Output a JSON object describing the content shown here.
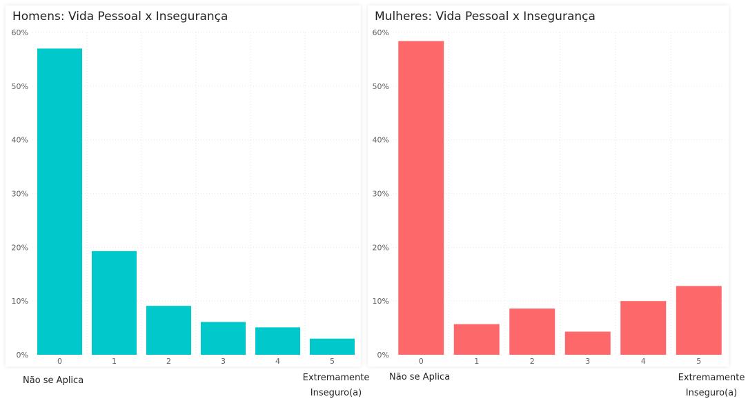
{
  "chart_data": [
    {
      "type": "bar",
      "title": "Homens: Vida Pessoal x Insegurança",
      "categories": [
        "0",
        "1",
        "2",
        "3",
        "4",
        "5"
      ],
      "values": [
        57.0,
        19.3,
        9.1,
        6.1,
        5.1,
        3.0
      ],
      "ylim": [
        0,
        60
      ],
      "yticks": [
        "0%",
        "10%",
        "20%",
        "30%",
        "40%",
        "50%",
        "60%"
      ],
      "color": "#01C8CA",
      "grid": true,
      "annotations": {
        "low": "Não se Aplica",
        "high": "Extremamente Inseguro(a)"
      }
    },
    {
      "type": "bar",
      "title": "Mulheres: Vida Pessoal x Insegurança",
      "categories": [
        "0",
        "1",
        "2",
        "3",
        "4",
        "5"
      ],
      "values": [
        58.4,
        5.7,
        8.6,
        4.3,
        10.0,
        12.8
      ],
      "ylim": [
        0,
        60
      ],
      "yticks": [
        "0%",
        "10%",
        "20%",
        "30%",
        "40%",
        "50%",
        "60%"
      ],
      "color": "#FD686A",
      "grid": true,
      "annotations": {
        "low": "Não se Aplica",
        "high": "Extremamente Inseguro(a)"
      }
    }
  ]
}
